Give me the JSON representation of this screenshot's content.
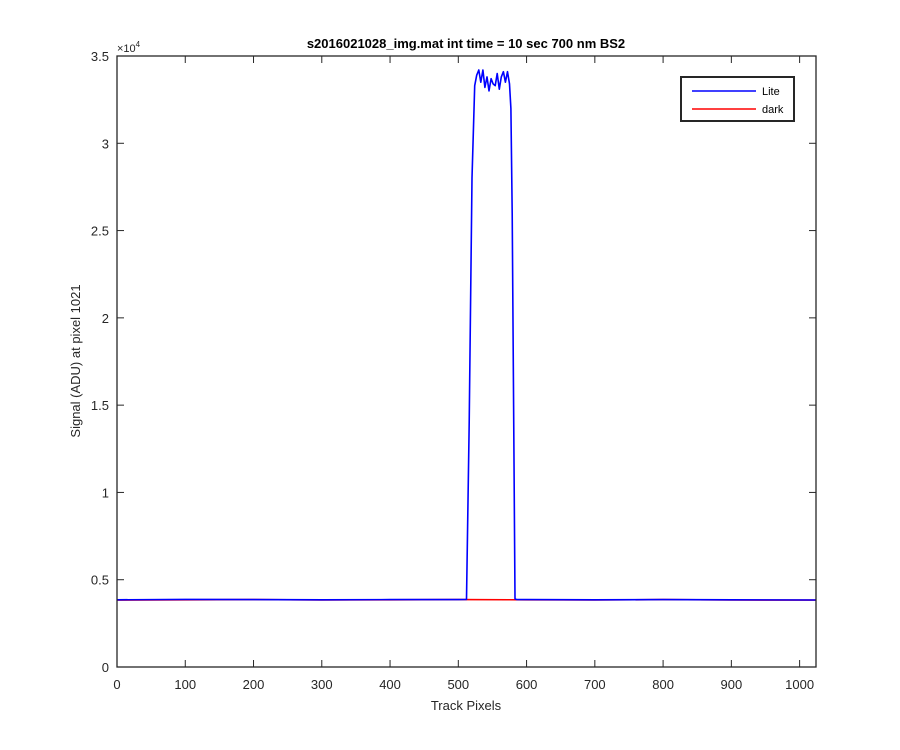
{
  "chart_data": {
    "type": "line",
    "title": "s2016021028_img.mat int time = 10 sec  700 nm BS2",
    "xlabel": "Track Pixels",
    "ylabel": "Signal (ADU) at pixel 1021",
    "xlim": [
      0,
      1024
    ],
    "ylim": [
      0,
      35000
    ],
    "y_exponent_label": "×10",
    "y_exponent_power": "4",
    "x_ticks": [
      0,
      100,
      200,
      300,
      400,
      500,
      600,
      700,
      800,
      900,
      1000
    ],
    "x_tick_labels": [
      "0",
      "100",
      "200",
      "300",
      "400",
      "500",
      "600",
      "700",
      "800",
      "900",
      "1000"
    ],
    "y_ticks": [
      0,
      5000,
      10000,
      15000,
      20000,
      25000,
      30000,
      35000
    ],
    "y_tick_labels": [
      "0",
      "0.5",
      "1",
      "1.5",
      "2",
      "2.5",
      "3",
      "3.5"
    ],
    "grid": false,
    "legend_position": "top-right",
    "series": [
      {
        "name": "Lite",
        "color": "#0000ff",
        "x": [
          0,
          100,
          200,
          300,
          400,
          500,
          512,
          516,
          520,
          524,
          527,
          530,
          533,
          536,
          539,
          542,
          545,
          548,
          551,
          554,
          557,
          560,
          563,
          566,
          569,
          572,
          575,
          577,
          579,
          581,
          583,
          585,
          587,
          600,
          700,
          800,
          900,
          1024
        ],
        "y": [
          3850,
          3870,
          3860,
          3850,
          3860,
          3860,
          3870,
          14000,
          28000,
          33300,
          33900,
          34200,
          33500,
          34200,
          33200,
          33800,
          33000,
          33700,
          33400,
          33300,
          34000,
          33100,
          33800,
          34100,
          33500,
          34100,
          33400,
          32000,
          26000,
          15000,
          3900,
          3870,
          3860,
          3860,
          3850,
          3860,
          3850,
          3840
        ]
      },
      {
        "name": "dark",
        "color": "#ff0000",
        "x": [
          0,
          100,
          200,
          300,
          400,
          500,
          600,
          700,
          800,
          900,
          1024
        ],
        "y": [
          3830,
          3850,
          3860,
          3840,
          3850,
          3860,
          3850,
          3840,
          3860,
          3840,
          3830
        ]
      }
    ]
  }
}
